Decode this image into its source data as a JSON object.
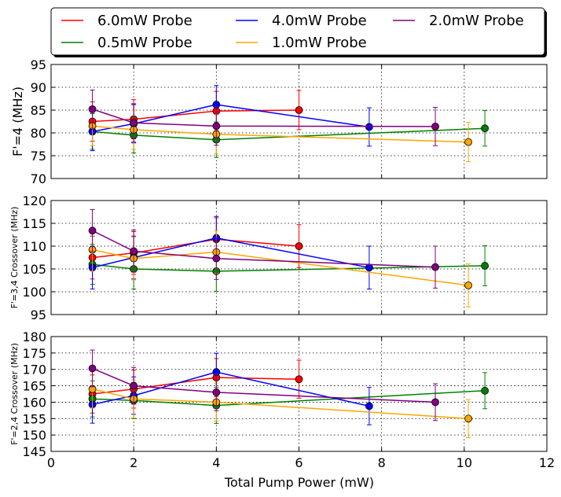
{
  "chart_data": {
    "type": "scatter",
    "xlabel": "Total Pump Power (mW)",
    "xlim": [
      0,
      12
    ],
    "xticks": [
      "0",
      "2",
      "4",
      "6",
      "8",
      "10",
      "12"
    ],
    "grid": true,
    "legend": {
      "placement": "top",
      "columns": 3,
      "entries": [
        {
          "name": "6.0mW Probe",
          "color": "#ff0000"
        },
        {
          "name": "0.5mW Probe",
          "color": "#008000"
        },
        {
          "name": "4.0mW Probe",
          "color": "#0000ff"
        },
        {
          "name": "1.0mW Probe",
          "color": "#ffa500"
        },
        {
          "name": "2.0mW Probe",
          "color": "#800080"
        }
      ]
    },
    "panels": [
      {
        "ylabel": "F'=4 (MHz)",
        "ylim": [
          70,
          95
        ],
        "yticks": [
          "70",
          "75",
          "80",
          "85",
          "90",
          "95"
        ],
        "series": [
          {
            "name": "6.0mW Probe",
            "color": "#ff0000",
            "x": [
              1,
              2,
              4,
              6
            ],
            "y": [
              82.5,
              83.0,
              84.8,
              85.0
            ],
            "err": [
              4.3,
              4.3,
              4.3,
              4.3
            ]
          },
          {
            "name": "0.5mW Probe",
            "color": "#008000",
            "x": [
              1,
              2,
              4,
              10.5
            ],
            "y": [
              80.3,
              79.5,
              78.5,
              81.0
            ],
            "err": [
              3.9,
              3.9,
              3.9,
              3.9
            ]
          },
          {
            "name": "4.0mW Probe",
            "color": "#0000ff",
            "x": [
              1,
              2,
              4,
              7.7
            ],
            "y": [
              80.3,
              82.0,
              86.2,
              81.3
            ],
            "err": [
              4.2,
              4.2,
              4.2,
              4.2
            ]
          },
          {
            "name": "1.0mW Probe",
            "color": "#ffa500",
            "x": [
              1,
              2,
              4,
              10.1
            ],
            "y": [
              81.5,
              80.7,
              79.7,
              78.0
            ],
            "err": [
              4.3,
              4.3,
              4.3,
              4.3
            ]
          },
          {
            "name": "2.0mW Probe",
            "color": "#800080",
            "x": [
              1,
              2,
              4,
              9.3
            ],
            "y": [
              85.2,
              82.2,
              81.5,
              81.4
            ],
            "err": [
              4.2,
              4.2,
              4.2,
              4.2
            ]
          }
        ]
      },
      {
        "ylabel": "F'=3,4 Crossover (MHz)",
        "ylim": [
          95,
          120
        ],
        "yticks": [
          "95",
          "100",
          "105",
          "110",
          "115",
          "120"
        ],
        "series": [
          {
            "name": "6.0mW Probe",
            "color": "#ff0000",
            "x": [
              1,
              2,
              4,
              6
            ],
            "y": [
              107.5,
              108.5,
              111.5,
              110.0
            ],
            "err": [
              4.7,
              4.7,
              4.7,
              4.7
            ]
          },
          {
            "name": "0.5mW Probe",
            "color": "#008000",
            "x": [
              1,
              2,
              4,
              10.5
            ],
            "y": [
              106.0,
              105.0,
              104.5,
              105.7
            ],
            "err": [
              4.4,
              4.4,
              4.4,
              4.4
            ]
          },
          {
            "name": "4.0mW Probe",
            "color": "#0000ff",
            "x": [
              1,
              2,
              4,
              7.7
            ],
            "y": [
              105.3,
              107.5,
              111.8,
              105.3
            ],
            "err": [
              4.7,
              4.7,
              4.7,
              4.7
            ]
          },
          {
            "name": "1.0mW Probe",
            "color": "#ffa500",
            "x": [
              1,
              2,
              4,
              10.1
            ],
            "y": [
              109.2,
              107.3,
              108.7,
              101.4
            ],
            "err": [
              4.7,
              4.7,
              4.7,
              4.7
            ]
          },
          {
            "name": "2.0mW Probe",
            "color": "#800080",
            "x": [
              1,
              2,
              4,
              9.3
            ],
            "y": [
              113.4,
              108.9,
              107.3,
              105.4
            ],
            "err": [
              4.6,
              4.6,
              4.6,
              4.6
            ]
          }
        ]
      },
      {
        "ylabel": "F'=2,4 Crossover (MHz)",
        "ylim": [
          145,
          180
        ],
        "yticks": [
          "145",
          "150",
          "155",
          "160",
          "165",
          "170",
          "175",
          "180"
        ],
        "series": [
          {
            "name": "6.0mW Probe",
            "color": "#ff0000",
            "x": [
              1,
              2,
              4,
              6
            ],
            "y": [
              162.5,
              164.0,
              167.5,
              167.0
            ],
            "err": [
              5.8,
              5.8,
              5.8,
              5.8
            ]
          },
          {
            "name": "0.5mW Probe",
            "color": "#008000",
            "x": [
              1,
              2,
              4,
              10.5
            ],
            "y": [
              161.0,
              160.5,
              159.0,
              163.5
            ],
            "err": [
              5.5,
              5.5,
              5.5,
              5.5
            ]
          },
          {
            "name": "4.0mW Probe",
            "color": "#0000ff",
            "x": [
              1,
              2,
              4,
              7.7
            ],
            "y": [
              159.3,
              162.0,
              169.2,
              158.8
            ],
            "err": [
              5.7,
              5.7,
              5.7,
              5.7
            ]
          },
          {
            "name": "1.0mW Probe",
            "color": "#ffa500",
            "x": [
              1,
              2,
              4,
              10.1
            ],
            "y": [
              164.0,
              161.0,
              160.0,
              155.0
            ],
            "err": [
              5.8,
              5.8,
              5.8,
              5.8
            ]
          },
          {
            "name": "2.0mW Probe",
            "color": "#800080",
            "x": [
              1,
              2,
              4,
              9.3
            ],
            "y": [
              170.3,
              165.0,
              163.0,
              160.0
            ],
            "err": [
              5.6,
              5.6,
              5.6,
              5.6
            ]
          }
        ]
      }
    ]
  }
}
